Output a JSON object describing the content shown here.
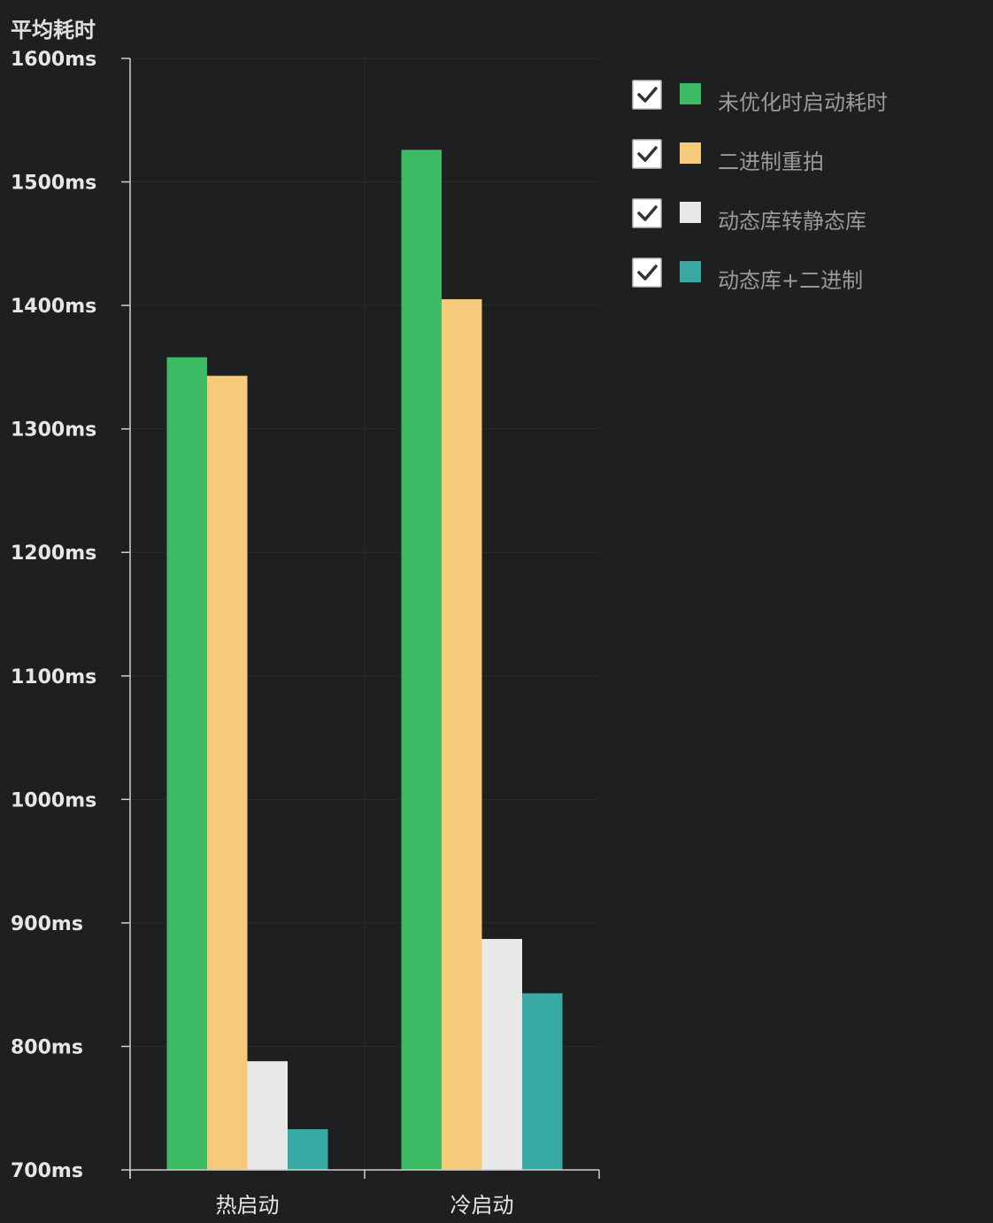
{
  "chart_data": {
    "type": "bar",
    "ylabel": "平均耗时",
    "xlabel": "",
    "ylim": [
      700,
      1600
    ],
    "y_ticks": [
      "700ms",
      "800ms",
      "900ms",
      "1000ms",
      "1100ms",
      "1200ms",
      "1300ms",
      "1400ms",
      "1500ms",
      "1600ms"
    ],
    "y_tick_values": [
      700,
      800,
      900,
      1000,
      1100,
      1200,
      1300,
      1400,
      1500,
      1600
    ],
    "categories": [
      "热启动",
      "冷启动"
    ],
    "series": [
      {
        "name": "未优化时启动耗时",
        "color": "#3dba64",
        "values": [
          1358,
          1526
        ],
        "checked": true
      },
      {
        "name": "二进制重拍",
        "color": "#f7ca7b",
        "values": [
          1343,
          1405
        ],
        "checked": true
      },
      {
        "name": "动态库转静态库",
        "color": "#e8e8e8",
        "values": [
          788,
          887
        ],
        "checked": true
      },
      {
        "name": "动态库+二进制",
        "color": "#39a9a4",
        "values": [
          733,
          843
        ],
        "checked": true
      }
    ],
    "grid": true,
    "legend_position": "top-right"
  }
}
